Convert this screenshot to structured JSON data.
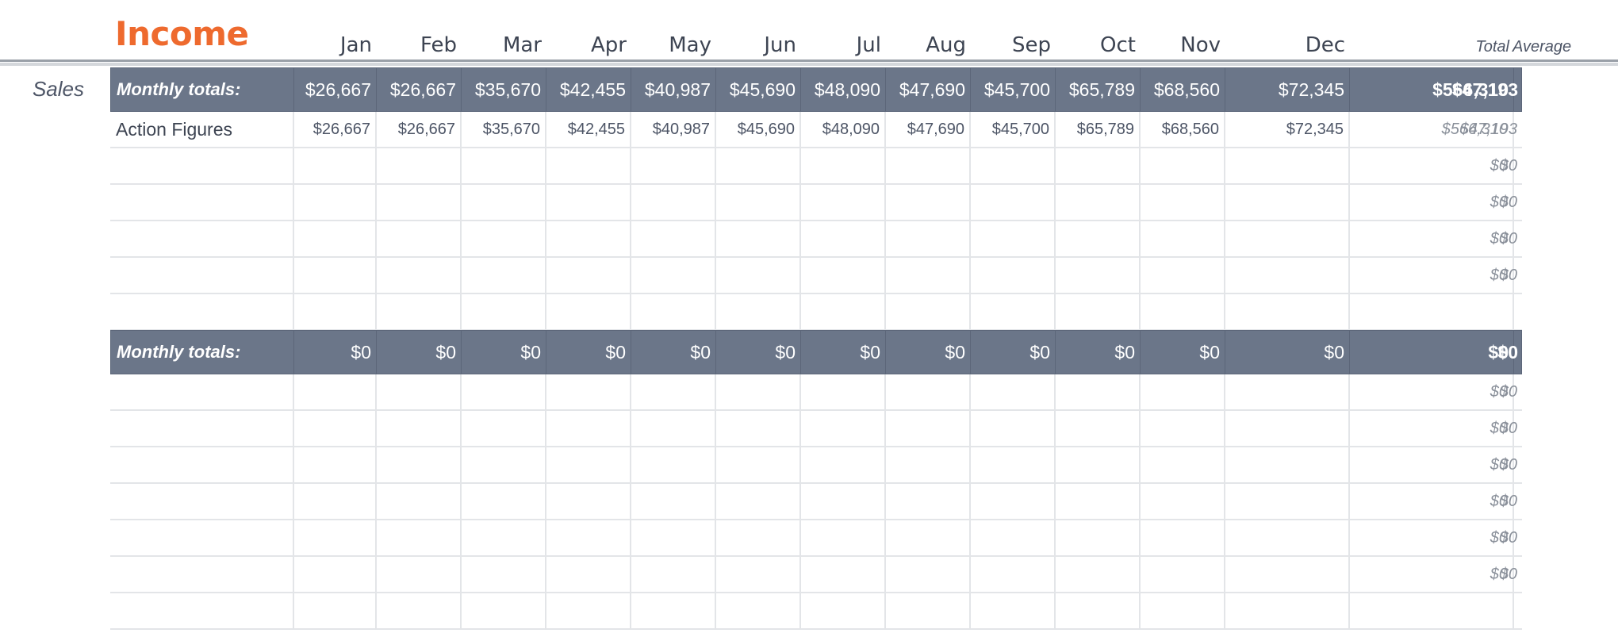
{
  "title": "Income",
  "months": [
    "Jan",
    "Feb",
    "Mar",
    "Apr",
    "May",
    "Jun",
    "Jul",
    "Aug",
    "Sep",
    "Oct",
    "Nov",
    "Dec"
  ],
  "total_header": "Total",
  "average_header": "Average",
  "sections": [
    {
      "label": "Sales",
      "totals_label": "Monthly totals:",
      "totals": [
        "$26,667",
        "$26,667",
        "$35,670",
        "$42,455",
        "$40,987",
        "$45,690",
        "$48,090",
        "$47,690",
        "$45,700",
        "$65,789",
        "$68,560",
        "$72,345"
      ],
      "total": "$566,310",
      "average": "$47,193",
      "rows": [
        {
          "label": "Action Figures",
          "values": [
            "$26,667",
            "$26,667",
            "$35,670",
            "$42,455",
            "$40,987",
            "$45,690",
            "$48,090",
            "$47,690",
            "$45,700",
            "$65,789",
            "$68,560",
            "$72,345"
          ],
          "total": "$566,310",
          "average": "$47,193"
        },
        {
          "label": "",
          "values": [
            "",
            "",
            "",
            "",
            "",
            "",
            "",
            "",
            "",
            "",
            "",
            ""
          ],
          "total": "$0",
          "average": "$0"
        },
        {
          "label": "",
          "values": [
            "",
            "",
            "",
            "",
            "",
            "",
            "",
            "",
            "",
            "",
            "",
            ""
          ],
          "total": "$0",
          "average": "$0"
        },
        {
          "label": "",
          "values": [
            "",
            "",
            "",
            "",
            "",
            "",
            "",
            "",
            "",
            "",
            "",
            ""
          ],
          "total": "$0",
          "average": "$0"
        },
        {
          "label": "",
          "values": [
            "",
            "",
            "",
            "",
            "",
            "",
            "",
            "",
            "",
            "",
            "",
            ""
          ],
          "total": "$0",
          "average": "$0"
        },
        {
          "label": "",
          "values": [
            "",
            "",
            "",
            "",
            "",
            "",
            "",
            "",
            "",
            "",
            "",
            ""
          ],
          "total": "",
          "average": ""
        }
      ]
    },
    {
      "label": "",
      "totals_label": "Monthly totals:",
      "totals": [
        "$0",
        "$0",
        "$0",
        "$0",
        "$0",
        "$0",
        "$0",
        "$0",
        "$0",
        "$0",
        "$0",
        "$0"
      ],
      "total": "$0",
      "average": "$0",
      "rows": [
        {
          "label": "",
          "values": [
            "",
            "",
            "",
            "",
            "",
            "",
            "",
            "",
            "",
            "",
            "",
            ""
          ],
          "total": "$0",
          "average": "$0"
        },
        {
          "label": "",
          "values": [
            "",
            "",
            "",
            "",
            "",
            "",
            "",
            "",
            "",
            "",
            "",
            ""
          ],
          "total": "$0",
          "average": "$0"
        },
        {
          "label": "",
          "values": [
            "",
            "",
            "",
            "",
            "",
            "",
            "",
            "",
            "",
            "",
            "",
            ""
          ],
          "total": "$0",
          "average": "$0"
        },
        {
          "label": "",
          "values": [
            "",
            "",
            "",
            "",
            "",
            "",
            "",
            "",
            "",
            "",
            "",
            ""
          ],
          "total": "$0",
          "average": "$0"
        },
        {
          "label": "",
          "values": [
            "",
            "",
            "",
            "",
            "",
            "",
            "",
            "",
            "",
            "",
            "",
            ""
          ],
          "total": "$0",
          "average": "$0"
        },
        {
          "label": "",
          "values": [
            "",
            "",
            "",
            "",
            "",
            "",
            "",
            "",
            "",
            "",
            "",
            ""
          ],
          "total": "$0",
          "average": "$0"
        },
        {
          "label": "",
          "values": [
            "",
            "",
            "",
            "",
            "",
            "",
            "",
            "",
            "",
            "",
            "",
            ""
          ],
          "total": "",
          "average": ""
        }
      ]
    }
  ]
}
